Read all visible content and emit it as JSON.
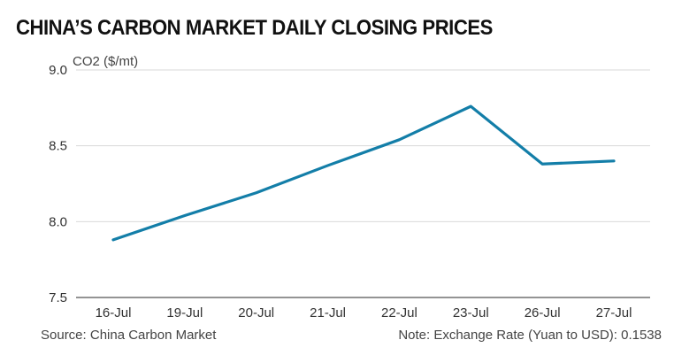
{
  "title": "CHINA’S CARBON MARKET DAILY CLOSING PRICES",
  "source": "Source: China Carbon Market",
  "note": "Note: Exchange Rate (Yuan to USD): 0.1538",
  "colors": {
    "line": "#137ea8",
    "grid": "#d9d9d9",
    "axis": "#555555"
  },
  "chart_data": {
    "type": "line",
    "title": "CHINA’S CARBON MARKET DAILY CLOSING PRICES",
    "ylabel": "CO2 ($/mt)",
    "xlabel": "",
    "categories": [
      "16-Jul",
      "19-Jul",
      "20-Jul",
      "21-Jul",
      "22-Jul",
      "23-Jul",
      "26-Jul",
      "27-Jul"
    ],
    "series": [
      {
        "values": [
          7.88,
          8.04,
          8.19,
          8.37,
          8.54,
          8.76,
          8.38,
          8.4
        ]
      }
    ],
    "ylim": [
      7.5,
      9.0
    ],
    "yticks": [
      "7.5",
      "8.0",
      "8.5",
      "9.0"
    ],
    "grid": true,
    "legend": "none"
  }
}
